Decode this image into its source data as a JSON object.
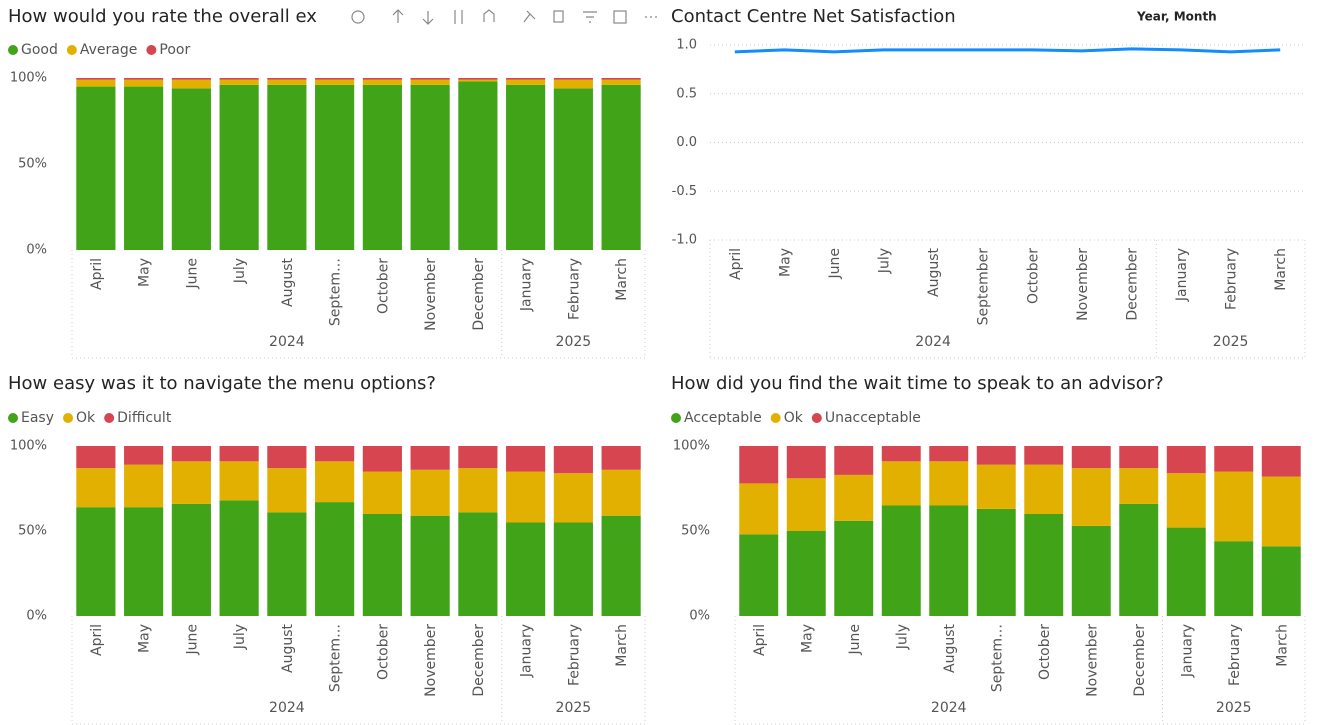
{
  "chart_data": [
    {
      "type": "stacked_bar_100",
      "title": "How would you rate the overall ex",
      "categories": [
        "April",
        "May",
        "June",
        "July",
        "August",
        "Septem…",
        "October",
        "November",
        "December",
        "January",
        "February",
        "March"
      ],
      "years": [
        "2024",
        "2024",
        "2024",
        "2024",
        "2024",
        "2024",
        "2024",
        "2024",
        "2024",
        "2025",
        "2025",
        "2025"
      ],
      "series": [
        {
          "name": "Good",
          "color": "#41a317",
          "values": [
            95,
            95,
            94,
            96,
            96,
            96,
            96,
            96,
            98,
            96,
            94,
            96
          ]
        },
        {
          "name": "Average",
          "color": "#e1b000",
          "values": [
            4,
            4,
            5,
            3,
            3,
            3,
            3,
            3,
            1,
            3,
            5,
            3
          ]
        },
        {
          "name": "Poor",
          "color": "#d64550",
          "values": [
            1,
            1,
            1,
            1,
            1,
            1,
            1,
            1,
            1,
            1,
            1,
            1
          ]
        }
      ],
      "ylim": [
        0,
        100
      ],
      "yticks": [
        {
          "value": 0,
          "label": "0%"
        },
        {
          "value": 50,
          "label": "50%"
        },
        {
          "value": 100,
          "label": "100%"
        }
      ],
      "grid": false
    },
    {
      "type": "line",
      "title": "Contact Centre Net Satisfaction",
      "legend_title": "Year, Month",
      "categories": [
        "April",
        "May",
        "June",
        "July",
        "August",
        "September",
        "October",
        "November",
        "December",
        "January",
        "February",
        "March"
      ],
      "years": [
        "2024",
        "2024",
        "2024",
        "2024",
        "2024",
        "2024",
        "2024",
        "2024",
        "2024",
        "2025",
        "2025",
        "2025"
      ],
      "series": [
        {
          "name": "Net Satisfaction",
          "color": "#118dff",
          "values": [
            0.93,
            0.95,
            0.93,
            0.95,
            0.95,
            0.95,
            0.95,
            0.94,
            0.96,
            0.95,
            0.93,
            0.95
          ]
        }
      ],
      "ylim": [
        -1,
        1
      ],
      "yticks": [
        {
          "value": -1,
          "label": "-1.0"
        },
        {
          "value": -0.5,
          "label": "-0.5"
        },
        {
          "value": 0,
          "label": "0.0"
        },
        {
          "value": 0.5,
          "label": "0.5"
        },
        {
          "value": 1,
          "label": "1.0"
        }
      ],
      "grid": true
    },
    {
      "type": "stacked_bar_100",
      "title": "How easy was it to navigate the menu options?",
      "categories": [
        "April",
        "May",
        "June",
        "July",
        "August",
        "Septem…",
        "October",
        "November",
        "December",
        "January",
        "February",
        "March"
      ],
      "years": [
        "2024",
        "2024",
        "2024",
        "2024",
        "2024",
        "2024",
        "2024",
        "2024",
        "2024",
        "2025",
        "2025",
        "2025"
      ],
      "series": [
        {
          "name": "Easy",
          "color": "#41a317",
          "values": [
            64,
            64,
            66,
            68,
            61,
            67,
            60,
            59,
            61,
            55,
            55,
            59
          ]
        },
        {
          "name": "Ok",
          "color": "#e1b000",
          "values": [
            23,
            25,
            25,
            23,
            26,
            24,
            25,
            27,
            26,
            30,
            29,
            27
          ]
        },
        {
          "name": "Difficult",
          "color": "#d64550",
          "values": [
            13,
            11,
            9,
            9,
            13,
            9,
            15,
            14,
            13,
            15,
            16,
            14
          ]
        }
      ],
      "ylim": [
        0,
        100
      ],
      "yticks": [
        {
          "value": 0,
          "label": "0%"
        },
        {
          "value": 50,
          "label": "50%"
        },
        {
          "value": 100,
          "label": "100%"
        }
      ],
      "grid": false
    },
    {
      "type": "stacked_bar_100",
      "title": "How did you find the wait time to speak to an advisor?",
      "categories": [
        "April",
        "May",
        "June",
        "July",
        "August",
        "Septem…",
        "October",
        "November",
        "December",
        "January",
        "February",
        "March"
      ],
      "years": [
        "2024",
        "2024",
        "2024",
        "2024",
        "2024",
        "2024",
        "2024",
        "2024",
        "2024",
        "2025",
        "2025",
        "2025"
      ],
      "series": [
        {
          "name": "Acceptable",
          "color": "#41a317",
          "values": [
            48,
            50,
            56,
            65,
            65,
            63,
            60,
            53,
            66,
            52,
            44,
            41
          ]
        },
        {
          "name": "Ok",
          "color": "#e1b000",
          "values": [
            30,
            31,
            27,
            26,
            26,
            26,
            29,
            34,
            21,
            32,
            41,
            41
          ]
        },
        {
          "name": "Unacceptable",
          "color": "#d64550",
          "values": [
            22,
            19,
            17,
            9,
            9,
            11,
            11,
            13,
            13,
            16,
            15,
            18
          ]
        }
      ],
      "ylim": [
        0,
        100
      ],
      "yticks": [
        {
          "value": 0,
          "label": "0%"
        },
        {
          "value": 50,
          "label": "50%"
        },
        {
          "value": 100,
          "label": "100%"
        }
      ],
      "grid": false
    }
  ]
}
